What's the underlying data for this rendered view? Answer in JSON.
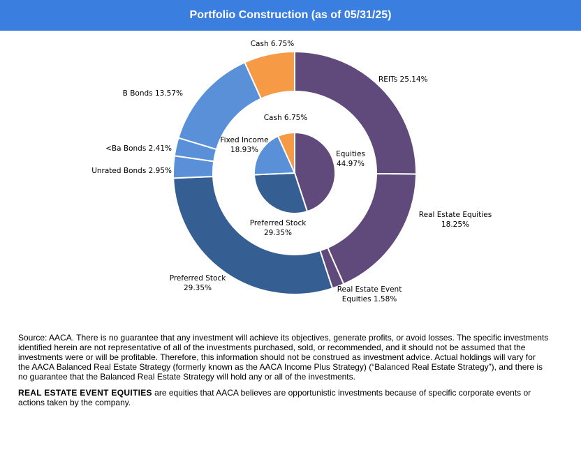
{
  "title": "Portfolio Construction (as of 05/31/25)",
  "chart_data": {
    "type": "pie",
    "subtype": "nested-donut",
    "inner": [
      {
        "name": "Equities",
        "value": 44.97,
        "label_line1": "Equities",
        "label_line2": "44.97%",
        "color": "#5f4a7b"
      },
      {
        "name": "Preferred Stock",
        "value": 29.35,
        "label_line1": "Preferred Stock",
        "label_line2": "29.35%",
        "color": "#355f92"
      },
      {
        "name": "Fixed Income",
        "value": 18.93,
        "label_line1": "Fixed Income",
        "label_line2": "18.93%",
        "color": "#5a90d8"
      },
      {
        "name": "Cash",
        "value": 6.75,
        "label_line1": "Cash 6.75%",
        "label_line2": "",
        "color": "#f79a46"
      }
    ],
    "outer": [
      {
        "name": "REITs",
        "value": 25.14,
        "label_line1": "REITs  25.14%",
        "label_line2": "",
        "color": "#5f4a7b"
      },
      {
        "name": "Real Estate Equities",
        "value": 18.25,
        "label_line1": "Real Estate Equities",
        "label_line2": "18.25%",
        "color": "#5f4a7b"
      },
      {
        "name": "Real Estate Event Equities",
        "value": 1.58,
        "label_line1": "Real Estate Event",
        "label_line2": "Equities 1.58%",
        "color": "#5f4a7b"
      },
      {
        "name": "Preferred Stock",
        "value": 29.35,
        "label_line1": "Preferred Stock",
        "label_line2": "29.35%",
        "color": "#355f92"
      },
      {
        "name": "Unrated Bonds",
        "value": 2.95,
        "label_line1": "Unrated Bonds 2.95%",
        "label_line2": "",
        "color": "#5a90d8"
      },
      {
        "name": "<Ba Bonds",
        "value": 2.41,
        "label_line1": "<Ba Bonds 2.41%",
        "label_line2": "",
        "color": "#5a90d8"
      },
      {
        "name": "B Bonds",
        "value": 13.57,
        "label_line1": "B Bonds 13.57%",
        "label_line2": "",
        "color": "#5a90d8"
      },
      {
        "name": "Cash",
        "value": 6.75,
        "label_line1": "Cash 6.75%",
        "label_line2": "",
        "color": "#f79a46"
      }
    ]
  },
  "notes": {
    "source": "Source: AACA.  There is no guarantee that any investment will achieve its objectives, generate profits, or avoid losses. The specific investments identified herein are not representative of all of the investments purchased, sold, or recommended, and it should not be assumed that the investments were or will be profitable. Therefore, this information should not be construed as investment advice. Actual holdings will vary for the AACA  Balanced Real Estate Strategy (formerly known as the AACA  Income Plus Strategy) (“Balanced Real Estate Strategy”),  and there is no guarantee that the Balanced Real Estate Strategy will hold any  or all of the investments.",
    "definition_term": "REAL  ESTATE  EVENT  EQUITIES",
    "definition_text": "  are equities that AACA  believes are opportunistic investments because of specific corporate events or actions taken by the company."
  }
}
